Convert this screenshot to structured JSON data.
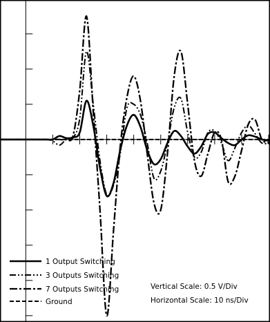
{
  "chart_data": {
    "type": "line",
    "title": "",
    "xlabel": "",
    "ylabel": "",
    "x_unit": "ns",
    "y_unit": "V",
    "x_range": [
      -1.91,
      18.1
    ],
    "y_range": [
      -2.59,
      1.98
    ],
    "grid": false,
    "legend_position": "bottom-left",
    "annotations": {
      "vertical_scale": "Vertical Scale: 0.5 V/Div",
      "horizontal_scale": "Horizontal Scale: 10 ns/Div"
    },
    "series": [
      {
        "name": "1 Output Switching",
        "style": "solid",
        "x": [
          -1.91,
          -1.0,
          0.0,
          1.5,
          2.0,
          2.5,
          3.0,
          3.5,
          4.0,
          4.5,
          5.0,
          5.5,
          6.0,
          6.5,
          7.0,
          7.5,
          8.0,
          8.5,
          9.0,
          9.5,
          10.0,
          10.5,
          11.0,
          11.5,
          12.0,
          12.5,
          13.0,
          13.5,
          14.0,
          14.5,
          15.0,
          15.5,
          16.0,
          16.5,
          17.0,
          17.5,
          18.1
        ],
        "y": [
          0,
          0,
          0,
          0,
          0,
          0.05,
          0.02,
          0.03,
          0.1,
          0.55,
          0.2,
          -0.4,
          -0.8,
          -0.62,
          -0.15,
          0.2,
          0.35,
          0.18,
          -0.15,
          -0.35,
          -0.28,
          -0.05,
          0.12,
          0.05,
          -0.1,
          -0.2,
          -0.1,
          0.08,
          0.1,
          0.02,
          -0.05,
          -0.08,
          0.0,
          0.06,
          0.04,
          0.0,
          -0.02
        ]
      },
      {
        "name": "3 Outputs Switching",
        "style": "dash-dot-dot",
        "x": [
          -1.91,
          -1.0,
          0.0,
          1.5,
          2.0,
          2.5,
          3.0,
          3.5,
          4.0,
          4.5,
          5.0,
          5.5,
          6.0,
          6.5,
          7.0,
          7.5,
          8.0,
          8.5,
          9.0,
          9.5,
          10.0,
          10.5,
          11.0,
          11.5,
          12.0,
          12.5,
          13.0,
          13.5,
          14.0,
          14.5,
          15.0,
          15.5,
          16.0,
          16.5,
          17.0,
          17.5,
          18.1
        ],
        "y": [
          0,
          0,
          0,
          0,
          -0.02,
          -0.08,
          0.0,
          0.02,
          0.3,
          1.25,
          0.5,
          -0.3,
          -0.78,
          -0.65,
          -0.2,
          0.45,
          0.5,
          0.35,
          -0.05,
          -0.55,
          -0.45,
          -0.05,
          0.45,
          0.58,
          0.1,
          -0.25,
          -0.18,
          0.1,
          0.12,
          -0.05,
          -0.3,
          -0.12,
          0.1,
          0.2,
          0.08,
          -0.05,
          -0.05
        ]
      },
      {
        "name": "7 Outputs Switching",
        "style": "dash-dot",
        "x": [
          -1.91,
          -1.0,
          0.0,
          1.5,
          2.0,
          2.5,
          3.0,
          3.5,
          4.0,
          4.5,
          5.0,
          5.5,
          6.0,
          6.5,
          7.0,
          7.5,
          8.0,
          8.5,
          9.0,
          9.5,
          10.0,
          10.5,
          11.0,
          11.5,
          12.0,
          12.5,
          13.0,
          13.5,
          14.0,
          14.5,
          15.0,
          15.5,
          16.0,
          16.5,
          17.0,
          17.5,
          18.1
        ],
        "y": [
          0,
          0,
          0,
          0,
          0,
          0.0,
          0.0,
          0.05,
          0.7,
          1.75,
          0.4,
          -1.0,
          -2.5,
          -1.3,
          -0.1,
          0.6,
          0.9,
          0.55,
          -0.2,
          -0.9,
          -1.0,
          -0.2,
          0.9,
          1.25,
          0.5,
          -0.3,
          -0.52,
          -0.2,
          0.1,
          0.0,
          -0.6,
          -0.52,
          -0.15,
          0.22,
          0.28,
          0.0,
          -0.05
        ]
      },
      {
        "name": "Ground",
        "style": "dashed",
        "x": [
          -1.91,
          18.1
        ],
        "y": [
          0,
          0
        ]
      }
    ]
  },
  "colors": {
    "line": "#000000",
    "background": "#ffffff"
  }
}
